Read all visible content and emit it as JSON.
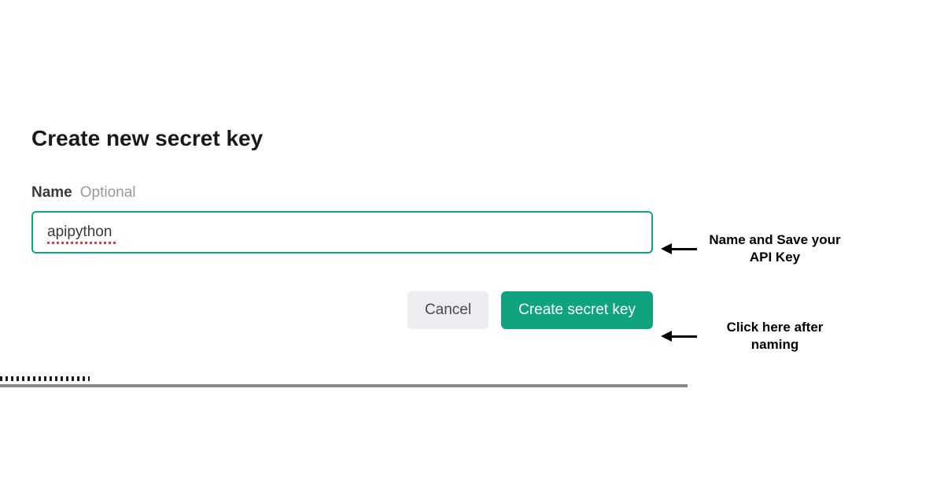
{
  "dialog": {
    "title": "Create new secret key",
    "field": {
      "label": "Name",
      "optional_text": "Optional",
      "value": "apipython"
    },
    "buttons": {
      "cancel": "Cancel",
      "create": "Create secret key"
    }
  },
  "annotations": {
    "input_note": "Name and Save your API Key",
    "button_note": "Click here after naming"
  },
  "colors": {
    "accent": "#10a37f",
    "cancel_bg": "#ececf1",
    "text_primary": "#1a1a1a",
    "text_secondary": "#3a3a3a",
    "text_muted": "#9a9a9a",
    "annotation_text": "#000000",
    "spellcheck": "#e03b3b",
    "bottom_line": "#8a8a8a"
  }
}
